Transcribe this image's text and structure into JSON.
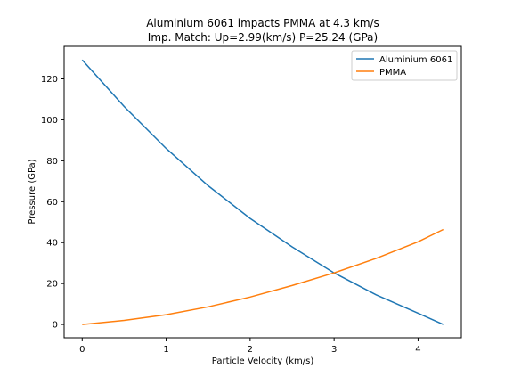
{
  "chart_data": {
    "type": "line",
    "title": "Aluminium 6061 impacts PMMA at 4.3 km/s",
    "subtitle": "Imp. Match: Up=2.99(km/s) P=25.24 (GPa)",
    "xlabel": "Particle Velocity (km/s)",
    "ylabel": "Pressure (GPa)",
    "xlim": [
      -0.215,
      4.515
    ],
    "ylim": [
      -6.5,
      135.9
    ],
    "xticks": [
      0,
      1,
      2,
      3,
      4
    ],
    "yticks": [
      0,
      20,
      40,
      60,
      80,
      100,
      120
    ],
    "grid": false,
    "legend_position": "top-right",
    "series": [
      {
        "name": "Aluminium 6061",
        "color": "#1f77b4",
        "x": [
          0,
          0.5,
          1.0,
          1.5,
          2.0,
          2.5,
          3.0,
          3.5,
          4.0,
          4.3
        ],
        "y": [
          129.3,
          106.5,
          86.0,
          67.8,
          51.8,
          37.9,
          25.2,
          14.5,
          5.5,
          0.0
        ]
      },
      {
        "name": "PMMA",
        "color": "#ff7f0e",
        "x": [
          0,
          0.5,
          1.0,
          1.5,
          2.0,
          2.5,
          3.0,
          3.5,
          4.0,
          4.3
        ],
        "y": [
          0.0,
          2.0,
          4.8,
          8.6,
          13.4,
          19.0,
          25.2,
          32.3,
          40.4,
          46.4
        ]
      }
    ]
  }
}
